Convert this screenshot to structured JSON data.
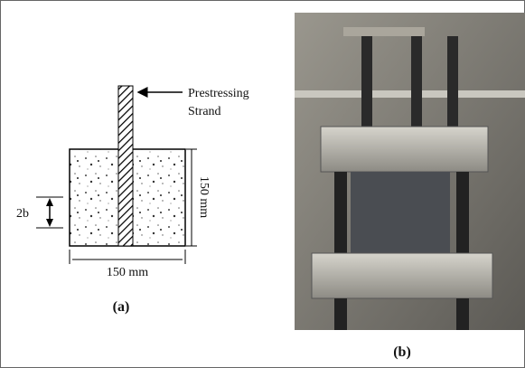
{
  "panel_a": {
    "strand_label": [
      "Prestressing",
      "Strand"
    ],
    "height_label": "150 mm",
    "embed_label": "2b",
    "width_label": "150 mm",
    "caption": "(a)"
  },
  "panel_b": {
    "caption": "(b)"
  }
}
